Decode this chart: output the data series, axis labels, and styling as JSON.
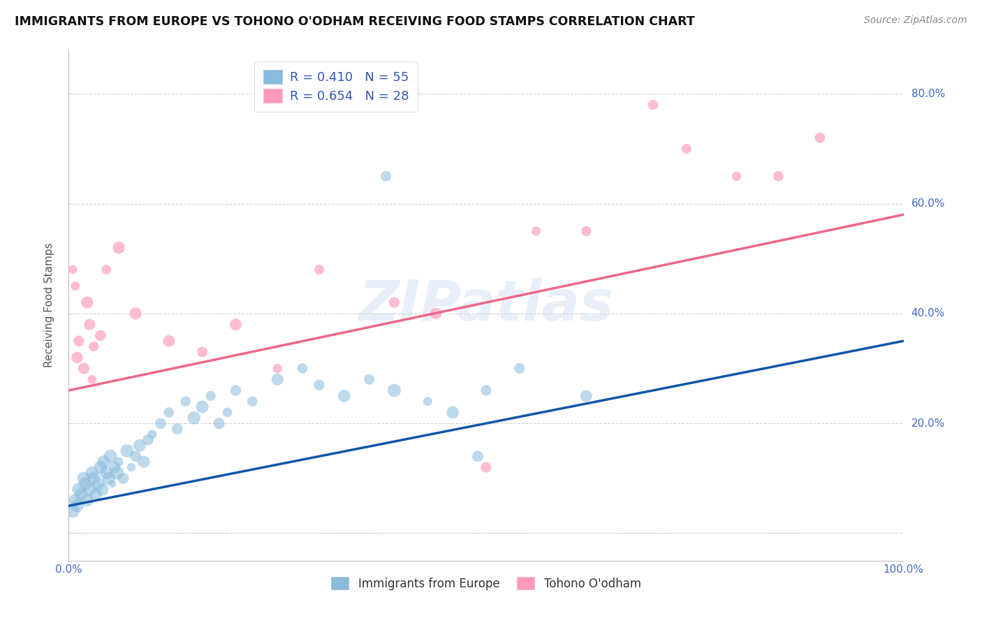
{
  "title": "IMMIGRANTS FROM EUROPE VS TOHONO O'ODHAM RECEIVING FOOD STAMPS CORRELATION CHART",
  "source": "Source: ZipAtlas.com",
  "ylabel": "Receiving Food Stamps",
  "xlim": [
    0.0,
    1.0
  ],
  "ylim": [
    -0.05,
    0.88
  ],
  "ytick_vals": [
    0.0,
    0.2,
    0.4,
    0.6,
    0.8
  ],
  "ytick_labels": [
    "",
    "20.0%",
    "40.0%",
    "60.0%",
    "80.0%"
  ],
  "watermark": "ZIPatlas",
  "blue_R": 0.41,
  "blue_N": 55,
  "pink_R": 0.654,
  "pink_N": 28,
  "blue_color": "#89BBDD",
  "pink_color": "#FF99BB",
  "blue_line_color": "#1155AA",
  "pink_line_color": "#EE6688",
  "legend_label_blue": "Immigrants from Europe",
  "legend_label_pink": "Tohono O'odham",
  "blue_line_start_y": 0.05,
  "blue_line_end_y": 0.35,
  "pink_line_start_y": 0.26,
  "pink_line_end_y": 0.58,
  "blue_x": [
    0.005,
    0.008,
    0.01,
    0.012,
    0.015,
    0.018,
    0.02,
    0.022,
    0.025,
    0.028,
    0.03,
    0.032,
    0.035,
    0.038,
    0.04,
    0.042,
    0.045,
    0.048,
    0.05,
    0.052,
    0.055,
    0.058,
    0.06,
    0.065,
    0.07,
    0.075,
    0.08,
    0.085,
    0.09,
    0.095,
    0.1,
    0.11,
    0.12,
    0.13,
    0.14,
    0.15,
    0.16,
    0.17,
    0.18,
    0.19,
    0.2,
    0.22,
    0.25,
    0.28,
    0.3,
    0.33,
    0.36,
    0.39,
    0.43,
    0.46,
    0.5,
    0.54,
    0.62,
    0.49,
    0.38
  ],
  "blue_y": [
    0.04,
    0.06,
    0.05,
    0.08,
    0.07,
    0.1,
    0.09,
    0.06,
    0.08,
    0.11,
    0.1,
    0.07,
    0.09,
    0.12,
    0.08,
    0.13,
    0.11,
    0.1,
    0.14,
    0.09,
    0.12,
    0.11,
    0.13,
    0.1,
    0.15,
    0.12,
    0.14,
    0.16,
    0.13,
    0.17,
    0.18,
    0.2,
    0.22,
    0.19,
    0.24,
    0.21,
    0.23,
    0.25,
    0.2,
    0.22,
    0.26,
    0.24,
    0.28,
    0.3,
    0.27,
    0.25,
    0.28,
    0.26,
    0.24,
    0.22,
    0.26,
    0.3,
    0.25,
    0.14,
    0.65
  ],
  "pink_x": [
    0.005,
    0.008,
    0.01,
    0.012,
    0.018,
    0.022,
    0.025,
    0.028,
    0.03,
    0.038,
    0.045,
    0.06,
    0.08,
    0.12,
    0.16,
    0.2,
    0.25,
    0.3,
    0.39,
    0.44,
    0.5,
    0.56,
    0.62,
    0.7,
    0.74,
    0.8,
    0.85,
    0.9
  ],
  "pink_y": [
    0.48,
    0.45,
    0.32,
    0.35,
    0.3,
    0.42,
    0.38,
    0.28,
    0.34,
    0.36,
    0.48,
    0.52,
    0.4,
    0.35,
    0.33,
    0.38,
    0.3,
    0.48,
    0.42,
    0.4,
    0.12,
    0.55,
    0.55,
    0.78,
    0.7,
    0.65,
    0.65,
    0.72
  ]
}
